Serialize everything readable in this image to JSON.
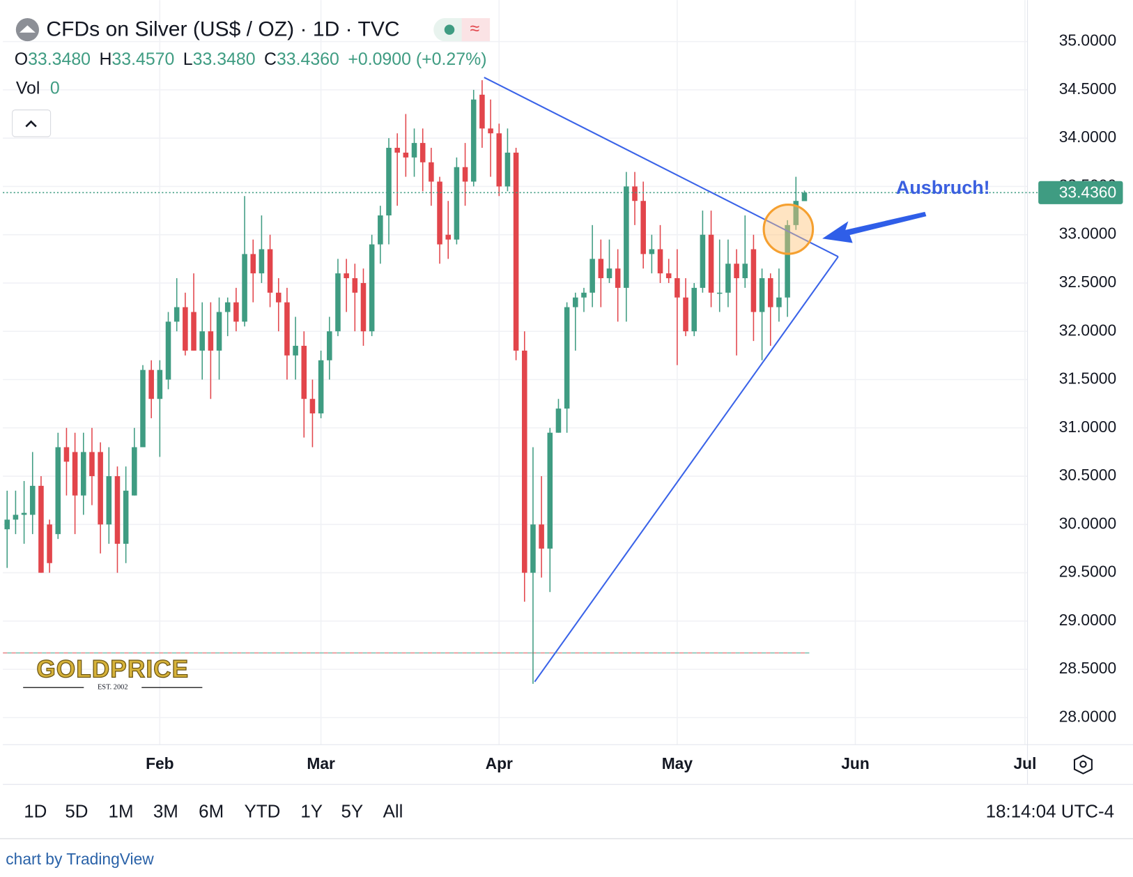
{
  "header": {
    "title": "CFDs on Silver (US$ / OZ) · 1D · TVC",
    "o_label": "O",
    "o": "33.3480",
    "h_label": "H",
    "h": "33.4570",
    "l_label": "L",
    "l": "33.3480",
    "c_label": "C",
    "c": "33.4360",
    "change": "+0.0900 (+0.27%)",
    "vol_label": "Vol",
    "vol": "0"
  },
  "logo": {
    "name": "GOLDPRICE",
    "est": "EST. 2002"
  },
  "toolbar": {
    "ranges": [
      "1D",
      "5D",
      "1M",
      "3M",
      "6M",
      "YTD",
      "1Y",
      "5Y",
      "All"
    ],
    "time": "18:14:04 UTC-4"
  },
  "footer": "chart by TradingView",
  "chart_data": {
    "type": "candlestick",
    "up_color": "#3f9c82",
    "down_color": "#e2454b",
    "grid": true,
    "annotation": "Ausbruch!",
    "last_label": "33.4360",
    "reference_line": 28.67,
    "xlim": [
      -0.5,
      120.3
    ],
    "xticks": [
      {
        "value": 18,
        "label": "Feb"
      },
      {
        "value": 37,
        "label": "Mar"
      },
      {
        "value": 58,
        "label": "Apr"
      },
      {
        "value": 79,
        "label": "May"
      },
      {
        "value": 100,
        "label": "Jun"
      },
      {
        "value": 120,
        "label": "Jul"
      }
    ],
    "ylim": [
      27.72,
      35.43
    ],
    "yticks": [
      {
        "value": 28,
        "label": "28.0000"
      },
      {
        "value": 28.5,
        "label": "28.5000"
      },
      {
        "value": 29,
        "label": "29.0000"
      },
      {
        "value": 29.5,
        "label": "29.5000"
      },
      {
        "value": 30,
        "label": "30.0000"
      },
      {
        "value": 30.5,
        "label": "30.5000"
      },
      {
        "value": 31,
        "label": "31.0000"
      },
      {
        "value": 31.5,
        "label": "31.5000"
      },
      {
        "value": 32,
        "label": "32.0000"
      },
      {
        "value": 32.5,
        "label": "32.5000"
      },
      {
        "value": 33,
        "label": "33.0000"
      },
      {
        "value": 33.5,
        "label": "33.5000"
      },
      {
        "value": 34,
        "label": "34.0000"
      },
      {
        "value": 34.5,
        "label": "34.5000"
      },
      {
        "value": 35,
        "label": "35.0000"
      }
    ],
    "open": [
      29.95,
      30.05,
      30.1,
      30.1,
      30.4,
      30.0,
      29.9,
      30.8,
      30.75,
      30.3,
      30.75,
      30.75,
      30.0,
      30.5,
      29.8,
      30.3,
      30.8,
      31.6,
      31.3,
      31.5,
      32.1,
      32.25,
      32.2,
      31.8,
      32.0,
      31.8,
      32.2,
      32.3,
      32.1,
      32.8,
      32.6,
      32.85,
      32.4,
      32.3,
      31.75,
      31.85,
      31.3,
      31.15,
      31.7,
      32.0,
      32.6,
      32.55,
      32.5,
      32.0,
      32.9,
      33.2,
      33.9,
      33.85,
      33.8,
      33.95,
      33.75,
      33.55,
      33.0,
      32.95,
      33.7,
      33.55,
      34.45,
      34.1,
      34.05,
      33.5,
      33.85,
      31.8,
      29.5,
      30.0,
      29.75,
      30.95,
      31.2,
      32.25,
      32.35,
      32.4,
      32.75,
      32.55,
      32.65,
      32.45,
      33.5,
      33.35,
      32.8,
      32.85,
      32.6,
      32.55,
      32.35,
      32.0,
      32.45,
      33.0,
      32.4,
      32.4,
      32.7,
      32.55,
      32.85,
      32.2,
      32.55,
      32.25,
      32.35,
      33.1,
      33.348
    ],
    "high": [
      30.35,
      30.35,
      30.45,
      30.75,
      30.5,
      30.05,
      30.95,
      31.0,
      30.95,
      30.95,
      31.0,
      30.85,
      30.8,
      30.6,
      30.6,
      31.0,
      31.65,
      31.7,
      31.7,
      32.2,
      32.55,
      32.4,
      32.6,
      32.3,
      32.3,
      32.35,
      32.35,
      32.45,
      33.4,
      32.95,
      33.2,
      33.0,
      32.55,
      32.45,
      32.15,
      32.0,
      31.5,
      31.8,
      32.15,
      32.75,
      32.75,
      32.7,
      32.65,
      33.0,
      33.3,
      34.0,
      34.05,
      34.25,
      34.1,
      34.1,
      33.9,
      33.6,
      33.35,
      33.8,
      33.95,
      34.5,
      34.6,
      34.4,
      34.15,
      34.1,
      33.9,
      32.0,
      30.8,
      30.5,
      31.0,
      31.3,
      32.3,
      32.4,
      32.45,
      33.1,
      32.95,
      32.95,
      32.85,
      33.65,
      33.65,
      33.55,
      33.0,
      33.1,
      32.75,
      32.85,
      32.55,
      32.5,
      33.25,
      33.25,
      32.95,
      32.95,
      32.85,
      33.2,
      33.0,
      32.65,
      32.6,
      32.65,
      33.15,
      33.6,
      33.457
    ],
    "low": [
      29.55,
      29.9,
      29.8,
      29.9,
      29.5,
      29.5,
      29.85,
      30.3,
      29.9,
      30.1,
      30.2,
      29.7,
      29.8,
      29.5,
      29.6,
      30.3,
      30.8,
      31.1,
      30.7,
      31.4,
      32.0,
      31.75,
      31.8,
      31.5,
      31.3,
      31.5,
      31.95,
      32.0,
      32.05,
      32.3,
      32.5,
      32.25,
      32.0,
      31.5,
      31.5,
      30.9,
      30.8,
      31.1,
      31.5,
      31.95,
      32.2,
      32.0,
      31.85,
      31.95,
      32.7,
      32.9,
      33.3,
      33.6,
      33.6,
      33.45,
      33.3,
      32.7,
      32.75,
      32.9,
      33.3,
      33.5,
      33.9,
      33.6,
      33.4,
      33.45,
      31.7,
      29.2,
      28.35,
      29.45,
      29.3,
      30.95,
      30.95,
      31.8,
      32.2,
      32.25,
      32.25,
      32.5,
      32.1,
      32.1,
      33.1,
      32.65,
      32.6,
      32.5,
      32.5,
      31.65,
      31.95,
      31.95,
      32.4,
      32.25,
      32.2,
      32.25,
      31.75,
      32.45,
      31.9,
      31.7,
      31.85,
      32.1,
      32.15,
      33.05,
      33.348
    ],
    "close": [
      30.05,
      30.1,
      30.12,
      30.4,
      29.5,
      29.6,
      30.8,
      30.65,
      30.3,
      30.75,
      30.5,
      30.0,
      30.5,
      29.8,
      30.35,
      30.8,
      31.6,
      31.3,
      31.6,
      32.1,
      32.25,
      31.8,
      31.8,
      32.0,
      31.8,
      32.2,
      32.3,
      32.1,
      32.8,
      32.6,
      32.85,
      32.4,
      32.3,
      31.75,
      31.85,
      31.3,
      31.15,
      31.7,
      32.0,
      32.6,
      32.55,
      32.4,
      32.0,
      32.9,
      33.2,
      33.9,
      33.85,
      33.8,
      33.95,
      33.75,
      33.55,
      32.9,
      32.95,
      33.7,
      33.55,
      34.4,
      34.1,
      34.05,
      33.5,
      33.85,
      31.8,
      29.5,
      30.0,
      29.75,
      30.95,
      31.2,
      32.25,
      32.35,
      32.4,
      32.75,
      32.55,
      32.65,
      32.45,
      33.5,
      33.35,
      32.8,
      32.85,
      32.6,
      32.55,
      32.35,
      32.0,
      32.45,
      33.0,
      32.4,
      32.4,
      32.7,
      32.55,
      32.7,
      32.2,
      32.55,
      32.25,
      32.35,
      33.1,
      33.35,
      33.436
    ]
  }
}
